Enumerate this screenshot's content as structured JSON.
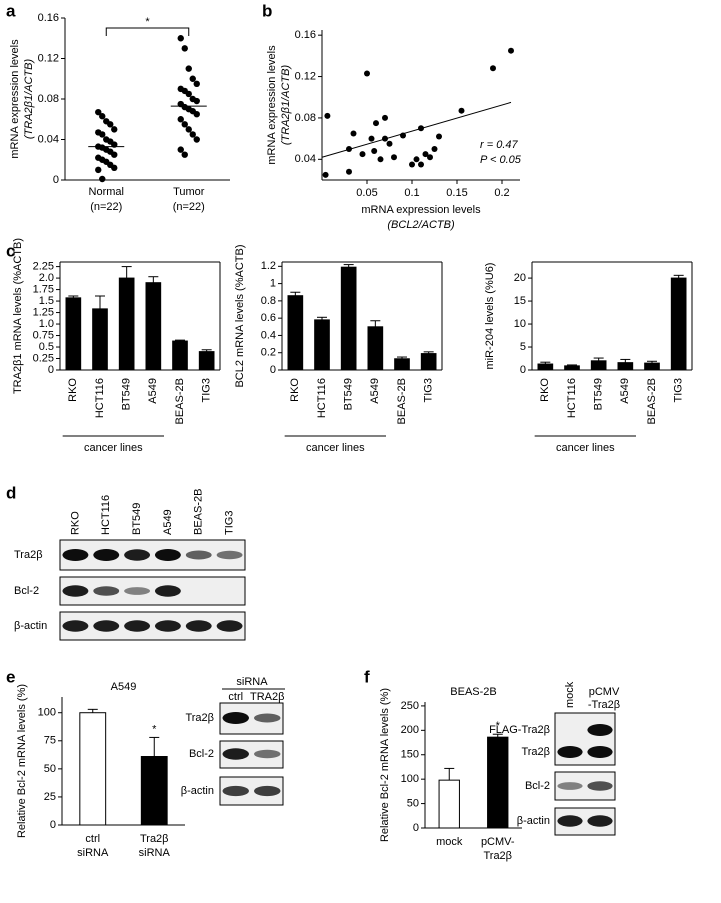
{
  "figure": {
    "panel_labels": [
      "a",
      "b",
      "c",
      "d",
      "e",
      "f"
    ]
  },
  "chart_data": [
    {
      "type": "strip",
      "ylabel": "mRNA expression levels",
      "ylabel_sub": "(TRA2β1/ACTB)",
      "categories": [
        "Normal",
        "Tumor"
      ],
      "category_sublabels": [
        "(n=22)",
        "(n=22)"
      ],
      "points": [
        [
          0.067,
          0.063,
          0.058,
          0.055,
          0.05,
          0.047,
          0.045,
          0.04,
          0.038,
          0.035,
          0.033,
          0.032,
          0.03,
          0.028,
          0.025,
          0.022,
          0.02,
          0.018,
          0.015,
          0.012,
          0.01,
          0.001
        ],
        [
          0.14,
          0.13,
          0.11,
          0.1,
          0.095,
          0.09,
          0.088,
          0.085,
          0.08,
          0.078,
          0.075,
          0.072,
          0.07,
          0.068,
          0.065,
          0.06,
          0.055,
          0.05,
          0.045,
          0.04,
          0.03,
          0.025
        ]
      ],
      "means": [
        0.033,
        0.073
      ],
      "color": "#000000",
      "ylim": [
        0,
        0.16
      ],
      "yticks": [
        0,
        0.04,
        0.08,
        0.12,
        0.16
      ],
      "significance": "*"
    },
    {
      "type": "scatter",
      "ylabel": "mRNA expression levels",
      "ylabel_sub": "(TRA2β1/ACTB)",
      "xlabel": "mRNA expression levels",
      "xlabel_sub": "(BCL2/ACTB)",
      "x": [
        0.004,
        0.006,
        0.03,
        0.03,
        0.035,
        0.045,
        0.05,
        0.055,
        0.058,
        0.06,
        0.065,
        0.07,
        0.07,
        0.075,
        0.08,
        0.09,
        0.1,
        0.105,
        0.11,
        0.11,
        0.115,
        0.12,
        0.125,
        0.13,
        0.155,
        0.19,
        0.21
      ],
      "y": [
        0.025,
        0.082,
        0.028,
        0.05,
        0.065,
        0.045,
        0.123,
        0.06,
        0.048,
        0.075,
        0.04,
        0.08,
        0.06,
        0.055,
        0.042,
        0.063,
        0.035,
        0.04,
        0.07,
        0.035,
        0.045,
        0.042,
        0.05,
        0.062,
        0.087,
        0.128,
        0.145
      ],
      "fit": {
        "x": [
          0,
          0.21
        ],
        "y": [
          0.042,
          0.095
        ]
      },
      "color": "#000000",
      "annotations": [
        "r = 0.47",
        "P < 0.05"
      ],
      "xlim": [
        0,
        0.22
      ],
      "xticks": [
        0.05,
        0.1,
        0.15,
        0.2
      ],
      "ylim": [
        0.02,
        0.165
      ],
      "yticks": [
        0.04,
        0.08,
        0.12,
        0.16
      ]
    },
    {
      "type": "bar",
      "ylabel": "TRA2β1 mRNA levels (%ACTB)",
      "categories": [
        "RKO",
        "HCT116",
        "BT549",
        "A549",
        "BEAS-2B",
        "TIG3"
      ],
      "group_label": "cancer lines",
      "values": [
        1.57,
        1.33,
        2.0,
        1.9,
        0.63,
        0.4
      ],
      "errors": [
        0.04,
        0.28,
        0.25,
        0.13,
        0.02,
        0.04
      ],
      "color": "#000000",
      "ylim": [
        0,
        2.35
      ],
      "yticks": [
        0,
        0.25,
        0.5,
        0.75,
        {
          "value": 1,
          "label": "1.0"
        },
        1.25,
        1.5,
        1.75,
        {
          "value": 2,
          "label": "2.0"
        },
        2.25
      ]
    },
    {
      "type": "bar",
      "ylabel": "BCL2 mRNA levels (%ACTB)",
      "categories": [
        "RKO",
        "HCT116",
        "BT549",
        "A549",
        "BEAS-2B",
        "TIG3"
      ],
      "group_label": "cancer lines",
      "values": [
        0.86,
        0.58,
        1.19,
        0.5,
        0.13,
        0.19
      ],
      "errors": [
        0.04,
        0.03,
        0.03,
        0.07,
        0.02,
        0.02
      ],
      "color": "#000000",
      "ylim": [
        0,
        1.25
      ],
      "yticks": [
        0,
        0.2,
        0.4,
        0.6,
        0.8,
        1,
        1.2
      ]
    },
    {
      "type": "bar",
      "ylabel": "miR-204 levels (%U6)",
      "categories": [
        "RKO",
        "HCT116",
        "BT549",
        "A549",
        "BEAS-2B",
        "TIG3"
      ],
      "group_label": "cancer lines",
      "values": [
        1.3,
        0.9,
        2.0,
        1.6,
        1.5,
        20
      ],
      "errors": [
        0.4,
        0.2,
        0.6,
        0.7,
        0.4,
        0.6
      ],
      "color": "#000000",
      "ylim": [
        0,
        23.5
      ],
      "yticks": [
        0,
        5,
        10,
        15,
        20
      ]
    },
    {
      "type": "bar",
      "title": "A549",
      "ylabel": "Relative Bcl-2 mRNA levels (%)",
      "categories": [
        [
          "ctrl",
          "siRNA"
        ],
        [
          "Tra2β",
          "siRNA"
        ]
      ],
      "values": [
        100,
        61
      ],
      "errors": [
        3,
        17
      ],
      "colors": [
        "#ffffff",
        "#000000"
      ],
      "ylim": [
        0,
        114
      ],
      "yticks": [
        0,
        25,
        50,
        75,
        100
      ],
      "significance": "*"
    },
    {
      "type": "bar",
      "title": "BEAS-2B",
      "ylabel": "Relative Bcl-2 mRNA levels (%)",
      "categories": [
        [
          "mock"
        ],
        [
          "pCMV-",
          "Tra2β"
        ]
      ],
      "values": [
        98,
        186
      ],
      "errors": [
        24,
        6
      ],
      "colors": [
        "#ffffff",
        "#000000"
      ],
      "ylim": [
        0,
        258
      ],
      "yticks": [
        0,
        50,
        100,
        150,
        200,
        250
      ],
      "significance": "*"
    }
  ],
  "blots": [
    {
      "lanes": [
        [
          "RKO"
        ],
        [
          "HCT116"
        ],
        [
          "BT549"
        ],
        [
          "A549"
        ],
        [
          "BEAS-2B"
        ],
        [
          "TIG3"
        ]
      ],
      "rows": [
        "Tra2β",
        "Bcl-2",
        "β-actin"
      ]
    },
    {
      "header": "siRNA",
      "lanes": [
        [
          "ctrl"
        ],
        [
          "TRA2β"
        ]
      ],
      "rows": [
        "Tra2β",
        "Bcl-2",
        "β-actin"
      ]
    },
    {
      "lanes": [
        [
          "mock"
        ],
        [
          "pCMV",
          "-Tra2β"
        ]
      ],
      "rows": [
        "FLAG-Tra2β",
        "Tra2β",
        "Bcl-2",
        "β-actin"
      ]
    }
  ]
}
